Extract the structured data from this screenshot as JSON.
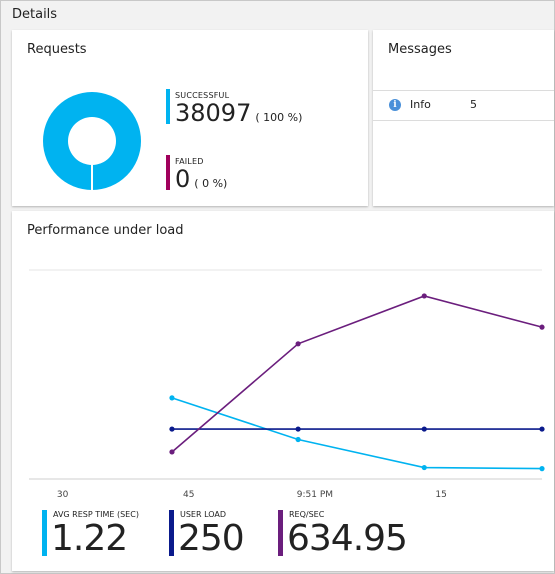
{
  "section_title": "Details",
  "requests": {
    "title": "Requests",
    "successful": {
      "label": "SUCCESSFUL",
      "value": "38097",
      "percent": "( 100 %)",
      "color": "#00b3f0"
    },
    "failed": {
      "label": "FAILED",
      "value": "0",
      "percent": "( 0 %)",
      "color": "#a0005c"
    }
  },
  "messages": {
    "title": "Messages",
    "items": [
      {
        "icon": "info-icon",
        "label": "Info",
        "count": "5"
      }
    ]
  },
  "performance": {
    "title": "Performance under load",
    "metrics": [
      {
        "label": "AVG RESP TIME (SEC)",
        "value": "1.22",
        "color": "#00b3f0"
      },
      {
        "label": "USER LOAD",
        "value": "250",
        "color": "#0a1a8c"
      },
      {
        "label": "REQ/SEC",
        "value": "634.95",
        "color": "#6b1e7d"
      }
    ]
  },
  "chart_data": {
    "type": "line",
    "x_tick_labels": [
      "30",
      "45",
      "9:51 PM",
      "15"
    ],
    "x_ticks_minutes": [
      30,
      45,
      60,
      75
    ],
    "xlim_minutes": [
      26,
      87
    ],
    "grid": "single horizontal gridline",
    "series": [
      {
        "name": "AVG RESP TIME (SEC)",
        "color": "#00b3f0",
        "x_minutes": [
          43,
          58,
          73,
          88
        ],
        "y_norm": [
          0.39,
          0.19,
          0.055,
          0.05
        ]
      },
      {
        "name": "USER LOAD",
        "color": "#0a1a8c",
        "x_minutes": [
          43,
          58,
          73,
          88
        ],
        "y_norm": [
          0.24,
          0.24,
          0.24,
          0.24
        ]
      },
      {
        "name": "REQ/SEC",
        "color": "#6b1e7d",
        "x_minutes": [
          43,
          58,
          73,
          88
        ],
        "y_norm": [
          0.13,
          0.65,
          0.88,
          0.73
        ]
      }
    ]
  }
}
